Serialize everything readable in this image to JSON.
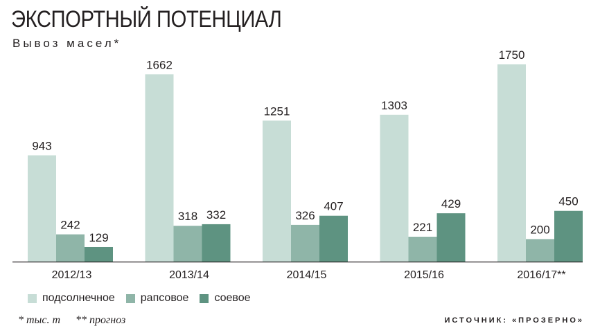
{
  "title": "ЭКСПОРТНЫЙ ПОТЕНЦИАЛ",
  "subtitle": "Вывоз масел*",
  "source": "ИСТОЧНИК: «ПРОЗЕРНО»",
  "footnotes": {
    "unit": "* тыс. т",
    "forecast": "** прогноз"
  },
  "legend": [
    {
      "label": "подсолнечное",
      "color": "#c7ddd6"
    },
    {
      "label": "рапсовое",
      "color": "#8fb5a8"
    },
    {
      "label": "соевое",
      "color": "#5e9381"
    }
  ],
  "chart_data": {
    "type": "bar",
    "title": "ЭКСПОРТНЫЙ ПОТЕНЦИАЛ",
    "subtitle": "Вывоз масел*",
    "categories": [
      "2012/13",
      "2013/14",
      "2014/15",
      "2015/16",
      "2016/17**"
    ],
    "series": [
      {
        "name": "подсолнечное",
        "color": "#c7ddd6",
        "values": [
          943,
          1662,
          1251,
          1303,
          1750
        ]
      },
      {
        "name": "рапсовое",
        "color": "#8fb5a8",
        "values": [
          242,
          318,
          326,
          221,
          200
        ]
      },
      {
        "name": "соевое",
        "color": "#5e9381",
        "values": [
          129,
          332,
          407,
          429,
          450
        ]
      }
    ],
    "ylim": [
      0,
      1750
    ],
    "grid": false,
    "legend_position": "bottom-left",
    "data_labels": true
  }
}
